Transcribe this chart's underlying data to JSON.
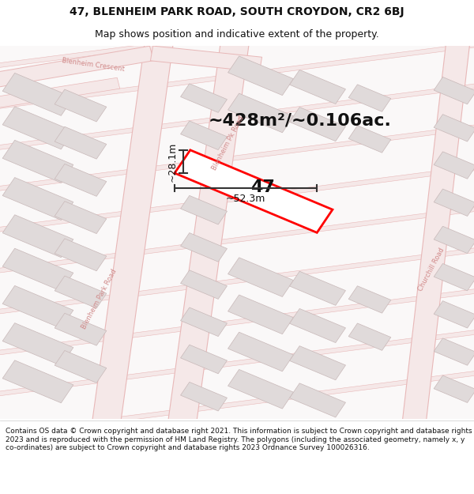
{
  "title_line1": "47, BLENHEIM PARK ROAD, SOUTH CROYDON, CR2 6BJ",
  "title_line2": "Map shows position and indicative extent of the property.",
  "area_text": "~428m²/~0.106ac.",
  "label_47": "47",
  "dim_width": "~52.3m",
  "dim_height": "~28.1m",
  "footer_text": "Contains OS data © Crown copyright and database right 2021. This information is subject to Crown copyright and database rights 2023 and is reproduced with the permission of HM Land Registry. The polygons (including the associated geometry, namely x, y co-ordinates) are subject to Crown copyright and database rights 2023 Ordnance Survey 100026316.",
  "bg_color": "#ffffff",
  "map_bg": "#ffffff",
  "road_stroke": "#e8b8b8",
  "road_fill": "#f5e8e8",
  "building_fill": "#e0dada",
  "building_edge": "#c8b8b8",
  "road_label_color": "#d08888",
  "highlight_color": "#ff0000",
  "dim_color": "#333333",
  "text_color": "#111111",
  "title_fontsize": 10,
  "subtitle_fontsize": 9,
  "area_fontsize": 16,
  "label_fontsize": 16,
  "dim_fontsize": 9,
  "road_label_fontsize": 6,
  "footer_fontsize": 6.5
}
